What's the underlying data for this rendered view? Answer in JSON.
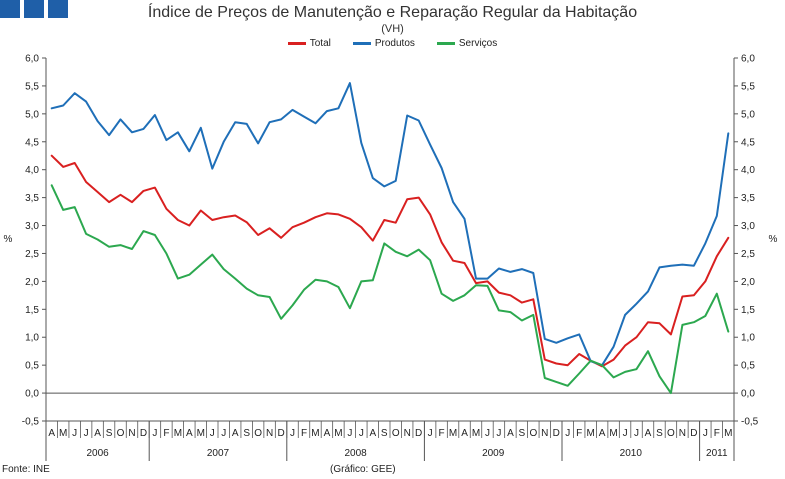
{
  "title": "Índice de Preços de Manutenção e Reparação Regular da Habitação",
  "subtitle": "(VH)",
  "source": "Fonte: INE",
  "credit": "(Gráfico: GEE)",
  "colors": {
    "logo": "#1f5fa8",
    "axis": "#555555",
    "grid": "#e6e6e6"
  },
  "chart_data": {
    "type": "line",
    "ylabel_left": "%",
    "ylabel_right": "%",
    "ylim": [
      -0.5,
      6.0
    ],
    "yticks": [
      "-0,5",
      "0,0",
      "0,5",
      "1,0",
      "1,5",
      "2,0",
      "2,5",
      "3,0",
      "3,5",
      "4,0",
      "4,5",
      "5,0",
      "5,5",
      "6,0"
    ],
    "x": [
      "A",
      "M",
      "J",
      "J",
      "A",
      "S",
      "O",
      "N",
      "D",
      "J",
      "F",
      "M",
      "A",
      "M",
      "J",
      "J",
      "A",
      "S",
      "O",
      "N",
      "D",
      "J",
      "F",
      "M",
      "A",
      "M",
      "J",
      "J",
      "A",
      "S",
      "O",
      "N",
      "D",
      "J",
      "F",
      "M",
      "A",
      "M",
      "J",
      "J",
      "A",
      "S",
      "O",
      "N",
      "D",
      "J",
      "F",
      "M",
      "A",
      "M",
      "J",
      "J",
      "A",
      "S",
      "O",
      "N",
      "D",
      "J",
      "F",
      "M"
    ],
    "years": [
      {
        "label": "2006",
        "start": 0,
        "end": 8
      },
      {
        "label": "2007",
        "start": 9,
        "end": 20
      },
      {
        "label": "2008",
        "start": 21,
        "end": 32
      },
      {
        "label": "2009",
        "start": 33,
        "end": 44
      },
      {
        "label": "2010",
        "start": 45,
        "end": 56
      },
      {
        "label": "2011",
        "start": 57,
        "end": 59
      }
    ],
    "series": [
      {
        "name": "Total",
        "color": "#d92020",
        "values": [
          4.25,
          4.05,
          4.12,
          3.78,
          3.6,
          3.42,
          3.55,
          3.42,
          3.62,
          3.68,
          3.3,
          3.1,
          3.0,
          3.27,
          3.1,
          3.15,
          3.18,
          3.06,
          2.83,
          2.95,
          2.78,
          2.97,
          3.05,
          3.15,
          3.22,
          3.2,
          3.12,
          2.97,
          2.73,
          3.1,
          3.05,
          3.47,
          3.5,
          3.2,
          2.7,
          2.37,
          2.33,
          1.97,
          2.0,
          1.8,
          1.75,
          1.62,
          1.68,
          0.6,
          0.53,
          0.5,
          0.7,
          0.58,
          0.48,
          0.6,
          0.85,
          1.0,
          1.27,
          1.25,
          1.05,
          1.73,
          1.75,
          2.0,
          2.45,
          2.78
        ]
      },
      {
        "name": "Produtos",
        "color": "#1f6fb8",
        "values": [
          5.1,
          5.15,
          5.37,
          5.22,
          4.87,
          4.62,
          4.9,
          4.67,
          4.73,
          4.98,
          4.53,
          4.67,
          4.33,
          4.75,
          4.02,
          4.5,
          4.85,
          4.82,
          4.47,
          4.85,
          4.9,
          5.07,
          4.95,
          4.83,
          5.05,
          5.1,
          5.55,
          4.48,
          3.85,
          3.7,
          3.8,
          4.97,
          4.88,
          4.45,
          4.03,
          3.42,
          3.12,
          2.05,
          2.05,
          2.23,
          2.17,
          2.22,
          2.15,
          0.97,
          0.9,
          0.98,
          1.05,
          0.57,
          0.5,
          0.83,
          1.4,
          1.6,
          1.82,
          2.25,
          2.28,
          2.3,
          2.28,
          2.68,
          3.17,
          4.65
        ]
      },
      {
        "name": "Serviços",
        "color": "#2ca84f",
        "values": [
          3.72,
          3.28,
          3.33,
          2.85,
          2.75,
          2.62,
          2.65,
          2.58,
          2.9,
          2.83,
          2.5,
          2.05,
          2.12,
          2.3,
          2.48,
          2.22,
          2.05,
          1.87,
          1.75,
          1.72,
          1.33,
          1.57,
          1.85,
          2.03,
          2.0,
          1.9,
          1.52,
          2.0,
          2.02,
          2.68,
          2.53,
          2.45,
          2.57,
          2.38,
          1.78,
          1.65,
          1.75,
          1.93,
          1.92,
          1.48,
          1.45,
          1.3,
          1.4,
          0.27,
          0.2,
          0.13,
          0.35,
          0.58,
          0.5,
          0.28,
          0.38,
          0.43,
          0.75,
          0.3,
          0.0,
          1.22,
          1.27,
          1.38,
          1.78,
          1.1
        ]
      }
    ]
  }
}
